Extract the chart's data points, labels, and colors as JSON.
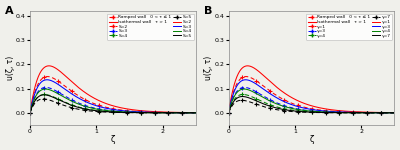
{
  "xlabel": "ζ",
  "ylabel_A": "u(ζ, τ)",
  "ylabel_B": "u(ζ, τ)",
  "label_A": "A",
  "label_B": "B",
  "legend_dashed": "Ramped wall   0 < τ ≤ 1",
  "legend_solid": "Isothermal wall   τ > 1",
  "panel_A_param_label": "S",
  "panel_B_param_label": "γ",
  "panel_A_params": [
    2,
    3,
    4,
    5
  ],
  "panel_B_params": [
    1,
    3,
    4,
    7
  ],
  "colors": [
    "red",
    "blue",
    "green",
    "black"
  ],
  "xlim": [
    0,
    2.5
  ],
  "ylim": [
    -0.05,
    0.42
  ],
  "bg_color": "#f0f0eb",
  "panel_A_amps_ramped": [
    1.55,
    1.2,
    0.95,
    0.78
  ],
  "panel_A_decs_ramped": [
    3.8,
    4.2,
    4.6,
    5.0
  ],
  "panel_A_amps_isothermal": [
    1.85,
    1.45,
    1.15,
    0.95
  ],
  "panel_A_decs_isothermal": [
    3.5,
    3.9,
    4.3,
    4.7
  ],
  "panel_B_amps_ramped": [
    1.55,
    1.2,
    0.95,
    0.72
  ],
  "panel_B_decs_ramped": [
    3.8,
    4.2,
    4.6,
    5.1
  ],
  "panel_B_amps_isothermal": [
    1.85,
    1.45,
    1.15,
    0.88
  ],
  "panel_B_decs_isothermal": [
    3.5,
    3.9,
    4.3,
    4.8
  ]
}
